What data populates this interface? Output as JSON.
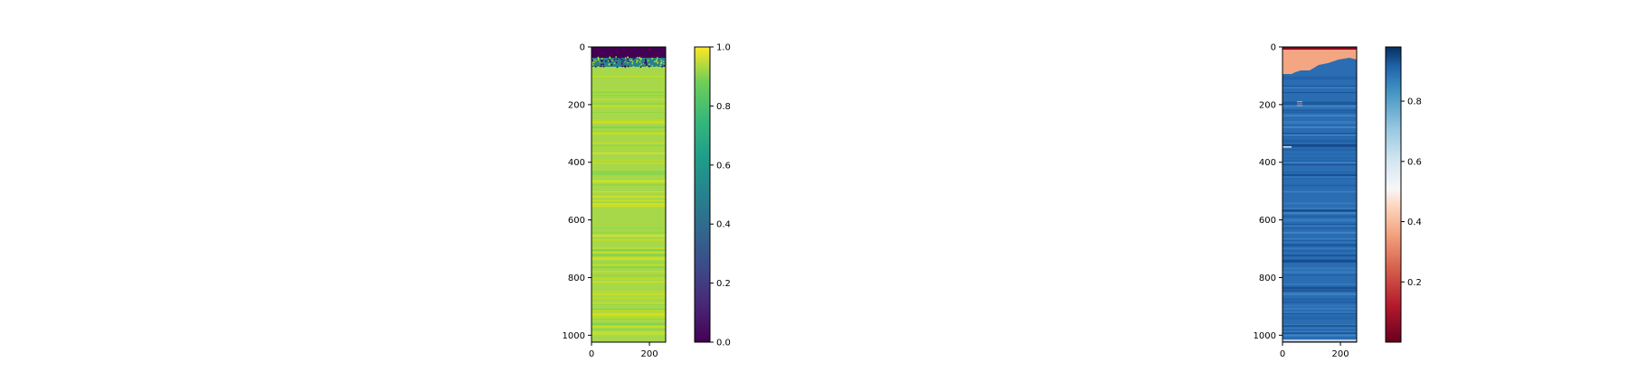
{
  "chart_data": [
    {
      "type": "heatmap",
      "title": "",
      "xlabel": "",
      "ylabel": "",
      "colormap": "viridis",
      "image_size": {
        "rows": 1024,
        "cols": 256
      },
      "xlim": [
        0,
        256
      ],
      "ylim": [
        1024,
        0
      ],
      "x_ticks": [
        0,
        200
      ],
      "x_tick_labels": [
        "0",
        "200"
      ],
      "y_ticks": [
        0,
        200,
        400,
        600,
        800,
        1000
      ],
      "y_tick_labels": [
        "0",
        "200",
        "400",
        "600",
        "800",
        "1000"
      ],
      "colorbar": {
        "range": [
          0.0,
          1.0
        ],
        "ticks": [
          0.0,
          0.2,
          0.4,
          0.6,
          0.8,
          1.0
        ],
        "tick_labels": [
          "0.0",
          "0.2",
          "0.4",
          "0.6",
          "0.8",
          "1.0"
        ]
      },
      "regions": [
        {
          "rows": [
            0,
            40
          ],
          "value": 0.0
        },
        {
          "rows": [
            40,
            75
          ],
          "value": 0.55,
          "note_speckled": true
        },
        {
          "rows": [
            75,
            1024
          ],
          "value": 0.85
        }
      ]
    },
    {
      "type": "heatmap",
      "title": "",
      "xlabel": "",
      "ylabel": "",
      "colormap": "RdBu",
      "image_size": {
        "rows": 1024,
        "cols": 256
      },
      "xlim": [
        0,
        256
      ],
      "ylim": [
        1024,
        0
      ],
      "x_ticks": [
        0,
        200
      ],
      "x_tick_labels": [
        "0",
        "200"
      ],
      "y_ticks": [
        0,
        200,
        400,
        600,
        800,
        1000
      ],
      "y_tick_labels": [
        "0",
        "200",
        "400",
        "600",
        "800",
        "1000"
      ],
      "colorbar": {
        "range": [
          0.0,
          0.98
        ],
        "ticks": [
          0.2,
          0.4,
          0.6,
          0.8
        ],
        "tick_labels": [
          "0.2",
          "0.4",
          "0.6",
          "0.8"
        ]
      },
      "regions": [
        {
          "rows": [
            0,
            10
          ],
          "value": 0.02
        },
        {
          "rows": [
            10,
            75
          ],
          "value": 0.3
        },
        {
          "rows": [
            75,
            1024
          ],
          "value": 0.85
        }
      ]
    }
  ]
}
